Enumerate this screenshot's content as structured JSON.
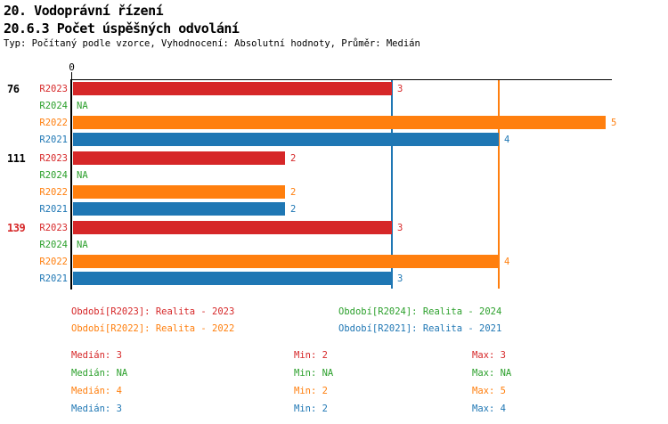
{
  "header": {
    "title": "20. Vodoprávní řízení",
    "subtitle": "20.6.3 Počet úspěšných odvolání",
    "meta": "Typ: Počítaný podle vzorce, Vyhodnocení: Absolutní hodnoty, Průměr: Medián"
  },
  "colors": {
    "R2023": "#d62728",
    "R2024": "#2ca02c",
    "R2022": "#ff7f0e",
    "R2021": "#1f77b4",
    "axis": "#000000",
    "background": "#ffffff"
  },
  "chart_data": {
    "type": "bar",
    "orientation": "horizontal",
    "title": "20. Vodoprávní řízení",
    "subtitle": "20.6.3 Počet úspěšných odvolání",
    "x_axis": {
      "tick_labels": [
        "0"
      ],
      "min": 0,
      "max": 5,
      "grid": false
    },
    "na_label": "NA",
    "groups": [
      {
        "label": "76",
        "label_color": "#000000",
        "bars": [
          {
            "series": "R2023",
            "value": 3,
            "color": "#d62728"
          },
          {
            "series": "R2024",
            "value": null,
            "color": "#2ca02c"
          },
          {
            "series": "R2022",
            "value": 5,
            "color": "#ff7f0e"
          },
          {
            "series": "R2021",
            "value": 4,
            "color": "#1f77b4"
          }
        ]
      },
      {
        "label": "111",
        "label_color": "#000000",
        "bars": [
          {
            "series": "R2023",
            "value": 2,
            "color": "#d62728"
          },
          {
            "series": "R2024",
            "value": null,
            "color": "#2ca02c"
          },
          {
            "series": "R2022",
            "value": 2,
            "color": "#ff7f0e"
          },
          {
            "series": "R2021",
            "value": 2,
            "color": "#1f77b4"
          }
        ]
      },
      {
        "label": "139",
        "label_color": "#d62728",
        "bars": [
          {
            "series": "R2023",
            "value": 3,
            "color": "#d62728"
          },
          {
            "series": "R2024",
            "value": null,
            "color": "#2ca02c"
          },
          {
            "series": "R2022",
            "value": 4,
            "color": "#ff7f0e"
          },
          {
            "series": "R2021",
            "value": 3,
            "color": "#1f77b4"
          }
        ]
      }
    ],
    "ref_lines": [
      {
        "name": "median-line-R2022",
        "value": 4,
        "color": "#ff7f0e"
      },
      {
        "name": "median-line-R2021",
        "value": 3,
        "color": "#1f77b4"
      }
    ]
  },
  "legend": [
    {
      "label": "Období[R2023]: Realita - 2023",
      "color": "#d62728"
    },
    {
      "label": "Období[R2024]: Realita - 2024",
      "color": "#2ca02c"
    },
    {
      "label": "Období[R2022]: Realita - 2022",
      "color": "#ff7f0e"
    },
    {
      "label": "Období[R2021]: Realita - 2021",
      "color": "#1f77b4"
    }
  ],
  "stats": [
    {
      "median": "Medián: 3",
      "min": "Min: 2",
      "max": "Max: 3",
      "color": "#d62728"
    },
    {
      "median": "Medián: NA",
      "min": "Min: NA",
      "max": "Max: NA",
      "color": "#2ca02c"
    },
    {
      "median": "Medián: 4",
      "min": "Min: 2",
      "max": "Max: 5",
      "color": "#ff7f0e"
    },
    {
      "median": "Medián: 3",
      "min": "Min: 2",
      "max": "Max: 4",
      "color": "#1f77b4"
    }
  ]
}
